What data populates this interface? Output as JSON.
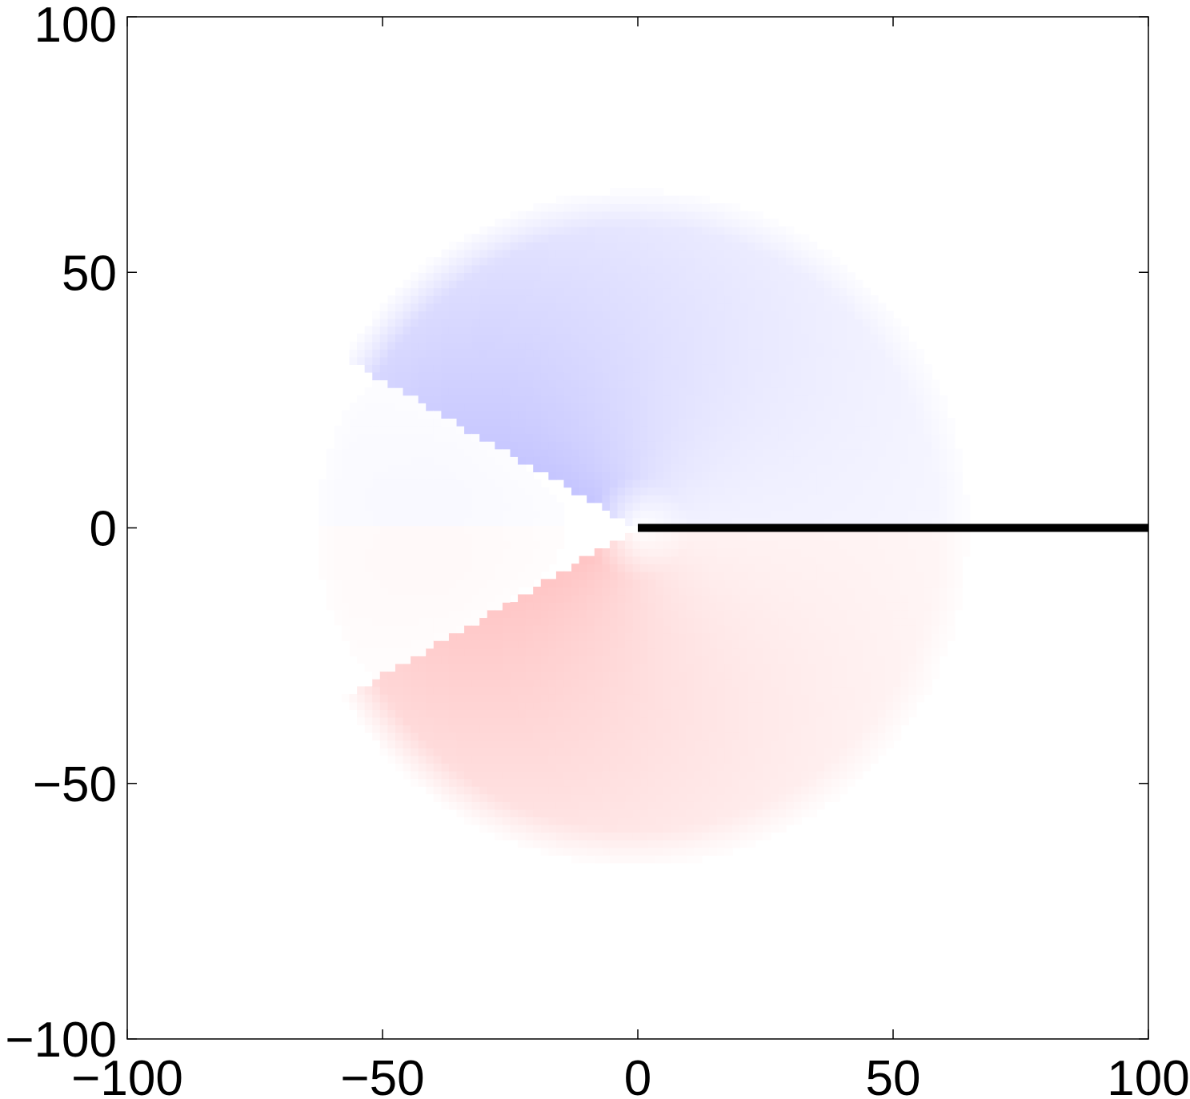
{
  "chart_data": {
    "type": "heatmap",
    "description_free": true,
    "title": "",
    "xlabel": "",
    "ylabel": "",
    "xlim": [
      -100,
      100
    ],
    "ylim": [
      -100,
      100
    ],
    "x_ticks": [
      -100,
      -50,
      0,
      50,
      100
    ],
    "y_ticks": [
      -100,
      -50,
      0,
      50,
      100
    ],
    "x_tick_labels": [
      "−100",
      "−50",
      "0",
      "50",
      "100"
    ],
    "y_tick_labels": [
      "−100",
      "−50",
      "0",
      "50",
      "100"
    ],
    "grid": false,
    "field": {
      "center": [
        0,
        0
      ],
      "radius": 67,
      "wedge_half_angle_deg": 30,
      "colors": {
        "positive": "#ff0000",
        "negative": "#0000ff",
        "neutral": "#ffffff"
      }
    },
    "line": {
      "x": [
        0,
        100
      ],
      "y": [
        0,
        0
      ],
      "color": "#000000"
    }
  }
}
